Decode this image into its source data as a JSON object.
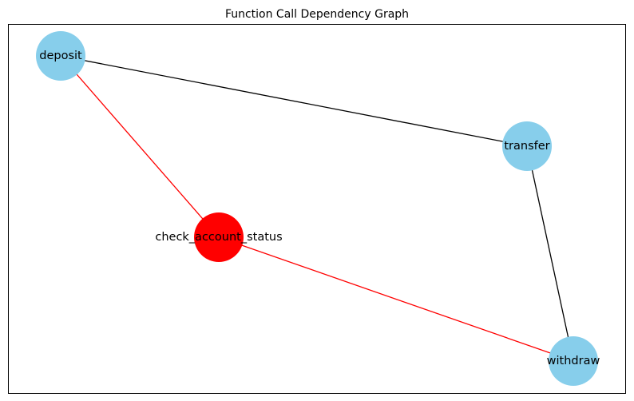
{
  "title": "Function Call Dependency Graph",
  "nodes": {
    "deposit": {
      "label": "deposit",
      "color": "#87ceeb"
    },
    "transfer": {
      "label": "transfer",
      "color": "#87ceeb"
    },
    "check_account_status": {
      "label": "check_account_status",
      "color": "#ff0000"
    },
    "withdraw": {
      "label": "withdraw",
      "color": "#87ceeb"
    }
  },
  "edges": [
    {
      "source": "deposit",
      "target": "transfer",
      "color": "#000000"
    },
    {
      "source": "transfer",
      "target": "withdraw",
      "color": "#000000"
    },
    {
      "source": "deposit",
      "target": "check_account_status",
      "color": "#ff0000"
    },
    {
      "source": "check_account_status",
      "target": "withdraw",
      "color": "#ff0000"
    }
  ],
  "colors": {
    "node_default": "#87ceeb",
    "node_highlight": "#ff0000",
    "edge_default": "#000000",
    "edge_highlight": "#ff0000",
    "frame": "#000000"
  }
}
